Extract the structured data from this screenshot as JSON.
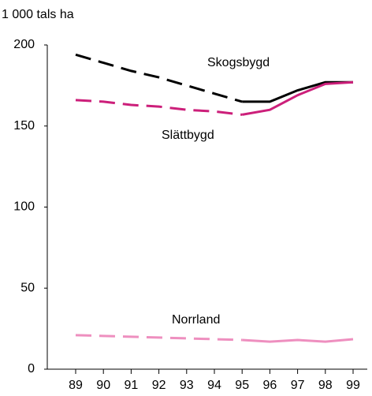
{
  "chart_data": {
    "type": "line",
    "title": "1 000 tals ha",
    "categories": [
      "89",
      "90",
      "91",
      "92",
      "93",
      "94",
      "95",
      "96",
      "97",
      "98",
      "99"
    ],
    "series": [
      {
        "name": "Skogsbygd",
        "color": "#000000",
        "values": [
          194,
          189,
          184,
          180,
          175,
          170,
          165,
          165,
          172,
          177,
          177
        ]
      },
      {
        "name": "Slättbygd",
        "color": "#cc1f7a",
        "values": [
          166,
          165,
          163,
          162,
          160,
          159,
          157,
          160,
          169,
          176,
          177
        ]
      },
      {
        "name": "Norrland",
        "color": "#ee8fbf",
        "values": [
          21,
          20.5,
          20,
          19.5,
          19,
          18.5,
          18,
          17,
          18,
          17,
          18.5
        ]
      }
    ],
    "dashed_until": "95",
    "ylim": [
      0,
      200
    ],
    "yticks": [
      0,
      50,
      100,
      150,
      200
    ],
    "grid": false
  }
}
